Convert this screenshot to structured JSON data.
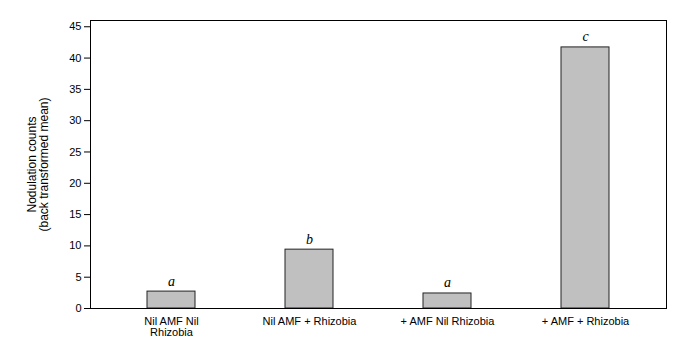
{
  "chart_data": {
    "type": "bar",
    "categories": [
      "Nil AMF Nil\nRhizobia",
      "Nil AMF + Rhizobia",
      "+ AMF Nil Rhizobia",
      "+ AMF + Rhizobia"
    ],
    "values": [
      2.7,
      9.4,
      2.4,
      41.7
    ],
    "annotations": [
      "a",
      "b",
      "a",
      "c"
    ],
    "color": "#c0c0c0",
    "ylabel": "Nodulation counts\n(back transformed mean)",
    "ylim": [
      0,
      46
    ],
    "yticks": [
      0,
      5,
      10,
      15,
      20,
      25,
      30,
      35,
      40,
      45
    ],
    "grid": false
  }
}
